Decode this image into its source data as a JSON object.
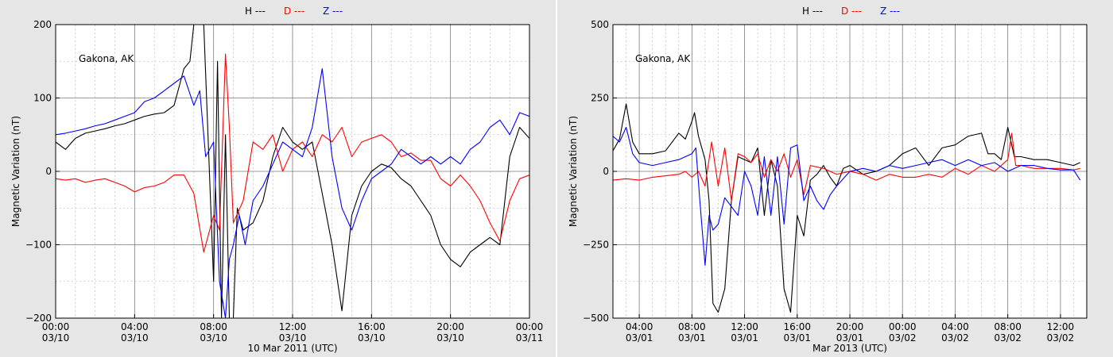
{
  "colors": {
    "H": "#000000",
    "D": "#ff0000",
    "Z": "#0000ff",
    "grid_major": "#7f7f7f",
    "grid_minor": "#b0b0b0"
  },
  "chart_data": [
    {
      "type": "line",
      "station": "Gakona, AK",
      "xlabel": "10 Mar 2011 (UTC)",
      "ylabel": "Magnetic Variation (nT)",
      "ylim": [
        -200,
        200
      ],
      "yticks": [
        -200,
        -100,
        0,
        100,
        200
      ],
      "ytick_labels": [
        "−200",
        "−100",
        "0",
        "100",
        "200"
      ],
      "xlim": [
        0,
        24
      ],
      "xticks": [
        {
          "t": 0,
          "time": "00:00",
          "date": "03/10"
        },
        {
          "t": 4,
          "time": "04:00",
          "date": "03/10"
        },
        {
          "t": 8,
          "time": "08:00",
          "date": "03/10"
        },
        {
          "t": 12,
          "time": "12:00",
          "date": "03/10"
        },
        {
          "t": 16,
          "time": "16:00",
          "date": "03/10"
        },
        {
          "t": 20,
          "time": "20:00",
          "date": "03/10"
        },
        {
          "t": 24,
          "time": "00:00",
          "date": "03/11"
        }
      ],
      "legend": [
        {
          "key": "H",
          "label": "H ---"
        },
        {
          "key": "D",
          "label": "D ---"
        },
        {
          "key": "Z",
          "label": "Z ---"
        }
      ],
      "series": [
        {
          "name": "H",
          "x": [
            0,
            0.5,
            1,
            1.5,
            2,
            2.5,
            3,
            3.5,
            4,
            4.5,
            5,
            5.5,
            6,
            6.5,
            6.8,
            7,
            7.3,
            7.5,
            8,
            8.2,
            8.4,
            8.6,
            8.8,
            9,
            9.2,
            9.5,
            10,
            10.5,
            11,
            11.5,
            12,
            12.5,
            13,
            13.5,
            14,
            14.5,
            15,
            15.5,
            16,
            16.5,
            17,
            17.5,
            18,
            18.5,
            19,
            19.5,
            20,
            20.5,
            21,
            21.5,
            22,
            22.5,
            23,
            23.5,
            24
          ],
          "y": [
            40,
            30,
            45,
            52,
            55,
            58,
            62,
            65,
            70,
            75,
            78,
            80,
            90,
            140,
            150,
            200,
            250,
            200,
            -150,
            150,
            -200,
            50,
            -200,
            -200,
            -50,
            -80,
            -70,
            -40,
            20,
            60,
            40,
            30,
            40,
            -30,
            -100,
            -190,
            -60,
            -20,
            0,
            10,
            5,
            -10,
            -20,
            -40,
            -60,
            -100,
            -120,
            -130,
            -110,
            -100,
            -90,
            -100,
            20,
            60,
            45
          ]
        },
        {
          "name": "D",
          "x": [
            0,
            0.5,
            1,
            1.5,
            2,
            2.5,
            3,
            3.5,
            4,
            4.5,
            5,
            5.5,
            6,
            6.5,
            7,
            7.5,
            8,
            8.3,
            8.6,
            8.8,
            9,
            9.5,
            10,
            10.5,
            11,
            11.5,
            12,
            12.5,
            13,
            13.5,
            14,
            14.5,
            15,
            15.5,
            16,
            16.5,
            17,
            17.5,
            18,
            18.5,
            19,
            19.5,
            20,
            20.5,
            21,
            21.5,
            22,
            22.5,
            23,
            23.5,
            24
          ],
          "y": [
            -10,
            -12,
            -10,
            -15,
            -12,
            -10,
            -15,
            -20,
            -28,
            -22,
            -20,
            -15,
            -5,
            -5,
            -30,
            -110,
            -60,
            -80,
            160,
            60,
            -70,
            -40,
            40,
            30,
            50,
            0,
            30,
            40,
            20,
            50,
            40,
            60,
            20,
            40,
            45,
            50,
            40,
            20,
            25,
            15,
            15,
            -10,
            -20,
            -5,
            -20,
            -40,
            -70,
            -95,
            -40,
            -10,
            -5
          ]
        },
        {
          "name": "Z",
          "x": [
            0,
            0.5,
            1,
            1.5,
            2,
            2.5,
            3,
            3.5,
            4,
            4.5,
            5,
            5.5,
            6,
            6.5,
            7,
            7.3,
            7.6,
            8,
            8.3,
            8.6,
            8.8,
            9,
            9.3,
            9.6,
            10,
            10.5,
            11,
            11.5,
            12,
            12.5,
            13,
            13.5,
            14,
            14.5,
            15,
            15.5,
            16,
            16.5,
            17,
            17.5,
            18,
            18.5,
            19,
            19.5,
            20,
            20.5,
            21,
            21.5,
            22,
            22.5,
            23,
            23.5,
            24
          ],
          "y": [
            50,
            52,
            55,
            58,
            62,
            65,
            70,
            75,
            80,
            95,
            100,
            110,
            120,
            130,
            90,
            110,
            20,
            40,
            -150,
            -200,
            -120,
            -100,
            -60,
            -100,
            -40,
            -20,
            10,
            40,
            30,
            20,
            60,
            140,
            20,
            -50,
            -80,
            -40,
            -10,
            0,
            10,
            30,
            20,
            10,
            20,
            10,
            20,
            10,
            30,
            40,
            60,
            70,
            50,
            80,
            75
          ]
        }
      ]
    },
    {
      "type": "line",
      "station": "Gakona, AK",
      "xlabel": "Mar 2013 (UTC)",
      "ylabel": "Magnetic Variation (nT)",
      "ylim": [
        -500,
        500
      ],
      "yticks": [
        -500,
        -250,
        0,
        250,
        500
      ],
      "ytick_labels": [
        "−500",
        "−250",
        "0",
        "250",
        "500"
      ],
      "xlim": [
        0,
        36
      ],
      "xticks": [
        {
          "t": 2,
          "time": "04:00",
          "date": "03/01"
        },
        {
          "t": 6,
          "time": "08:00",
          "date": "03/01"
        },
        {
          "t": 10,
          "time": "12:00",
          "date": "03/01"
        },
        {
          "t": 14,
          "time": "16:00",
          "date": "03/01"
        },
        {
          "t": 18,
          "time": "20:00",
          "date": "03/01"
        },
        {
          "t": 22,
          "time": "00:00",
          "date": "03/02"
        },
        {
          "t": 26,
          "time": "04:00",
          "date": "03/02"
        },
        {
          "t": 30,
          "time": "08:00",
          "date": "03/02"
        },
        {
          "t": 34,
          "time": "12:00",
          "date": "03/02"
        }
      ],
      "legend": [
        {
          "key": "H",
          "label": "H ---"
        },
        {
          "key": "D",
          "label": "D ---"
        },
        {
          "key": "Z",
          "label": "Z ---"
        }
      ],
      "series": [
        {
          "name": "H",
          "x": [
            0,
            0.5,
            1,
            1.5,
            2,
            3,
            4,
            5,
            5.5,
            6,
            6.2,
            6.5,
            7,
            7.3,
            7.6,
            8,
            8.5,
            9,
            9.5,
            10,
            10.5,
            11,
            11.5,
            12,
            12.5,
            13,
            13.5,
            14,
            14.5,
            15,
            15.5,
            16,
            16.5,
            17,
            17.5,
            18,
            19,
            20,
            21,
            22,
            23,
            24,
            25,
            26,
            27,
            28,
            28.5,
            29,
            29.5,
            30,
            30.5,
            31,
            32,
            33,
            34,
            35,
            35.5
          ],
          "y": [
            70,
            110,
            230,
            100,
            60,
            60,
            70,
            130,
            110,
            170,
            200,
            120,
            40,
            -100,
            -450,
            -480,
            -400,
            -100,
            50,
            40,
            30,
            80,
            -150,
            40,
            -50,
            -400,
            -480,
            -150,
            -220,
            -30,
            -10,
            20,
            -20,
            -50,
            10,
            20,
            -10,
            0,
            20,
            60,
            80,
            20,
            80,
            90,
            120,
            130,
            60,
            60,
            40,
            150,
            50,
            50,
            40,
            40,
            30,
            20,
            30
          ]
        },
        {
          "name": "D",
          "x": [
            0,
            1,
            2,
            3,
            4,
            5,
            5.5,
            6,
            6.5,
            7,
            7.5,
            8,
            8.5,
            9,
            9.5,
            10,
            10.5,
            11,
            11.5,
            12,
            12.5,
            13,
            13.5,
            14,
            14.5,
            15,
            16,
            17,
            18,
            19,
            20,
            21,
            22,
            23,
            24,
            25,
            26,
            27,
            28,
            29,
            30,
            30.3,
            30.6,
            31,
            32,
            33,
            34,
            35,
            35.5
          ],
          "y": [
            -30,
            -25,
            -30,
            -20,
            -15,
            -10,
            0,
            -20,
            0,
            -50,
            100,
            -50,
            80,
            -100,
            60,
            50,
            30,
            60,
            -20,
            40,
            0,
            60,
            -20,
            40,
            -80,
            20,
            10,
            -10,
            0,
            -10,
            -30,
            -10,
            -20,
            -20,
            -10,
            -20,
            10,
            -10,
            20,
            0,
            40,
            130,
            20,
            20,
            10,
            10,
            10,
            5,
            10
          ]
        },
        {
          "name": "Z",
          "x": [
            0,
            0.5,
            1,
            1.5,
            2,
            3,
            4,
            5,
            5.5,
            6,
            6.3,
            6.6,
            7,
            7.3,
            7.6,
            8,
            8.5,
            9,
            9.5,
            10,
            10.5,
            11,
            11.5,
            12,
            12.5,
            13,
            13.5,
            14,
            14.5,
            15,
            15.5,
            16,
            16.5,
            17,
            18,
            19,
            20,
            21,
            22,
            23,
            24,
            25,
            26,
            27,
            28,
            29,
            30,
            31,
            32,
            33,
            34,
            35,
            35.5
          ],
          "y": [
            120,
            100,
            150,
            60,
            30,
            20,
            30,
            40,
            50,
            60,
            80,
            -100,
            -320,
            -150,
            -200,
            -180,
            -90,
            -120,
            -150,
            0,
            -50,
            -150,
            50,
            -150,
            50,
            -180,
            80,
            90,
            -100,
            -50,
            -100,
            -130,
            -80,
            -50,
            0,
            10,
            0,
            20,
            10,
            20,
            30,
            40,
            20,
            40,
            20,
            30,
            0,
            20,
            20,
            10,
            5,
            5,
            -30
          ]
        }
      ]
    }
  ]
}
